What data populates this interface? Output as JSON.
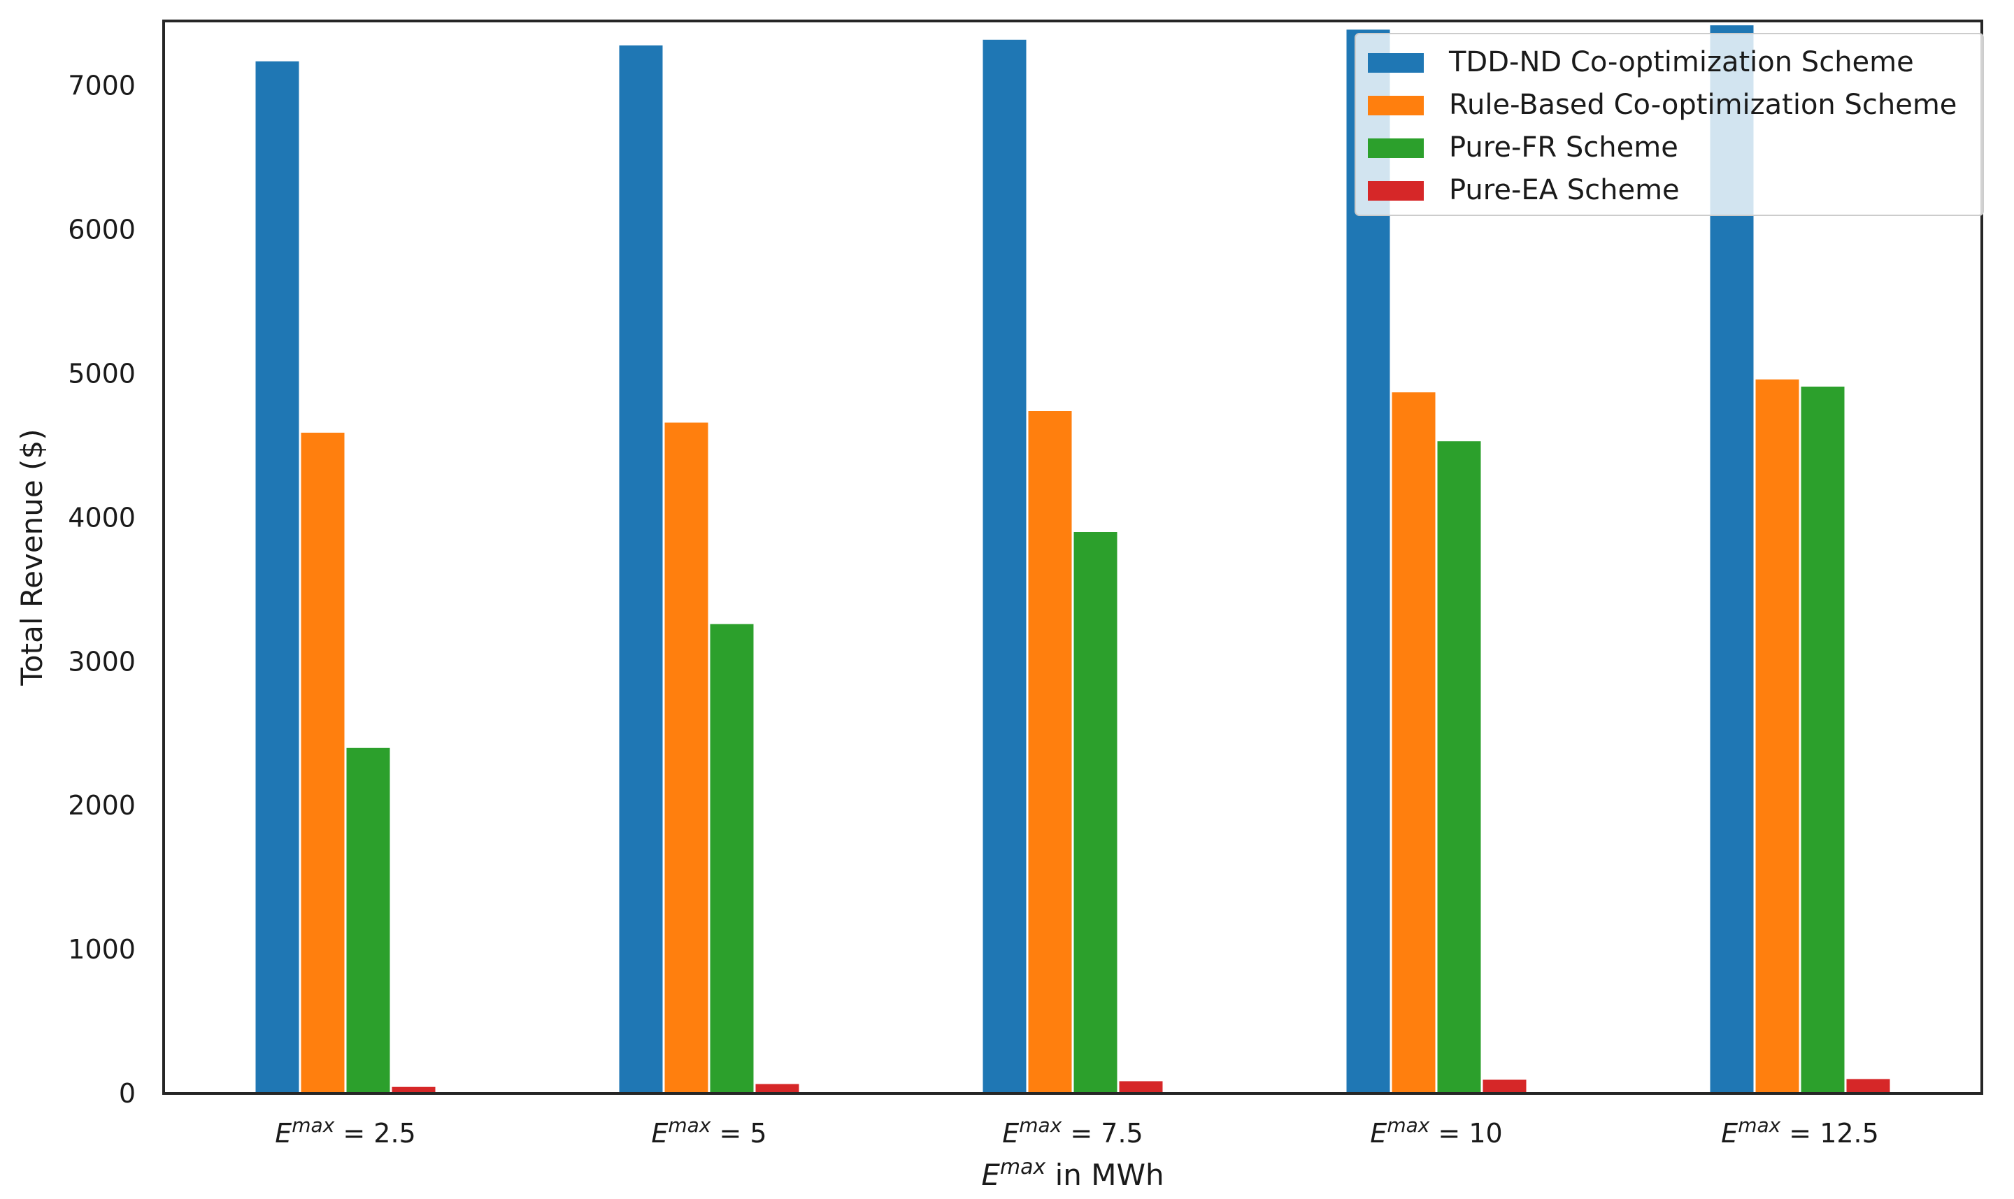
{
  "chart_data": {
    "type": "bar",
    "title": "",
    "xlabel_var": "E",
    "xlabel_sup": "max",
    "xlabel_rest": " in MWh",
    "ylabel": "Total Revenue ($)",
    "ylim": [
      0,
      7450
    ],
    "yticks": [
      0,
      1000,
      2000,
      3000,
      4000,
      5000,
      6000,
      7000
    ],
    "grid": false,
    "legend_position": "top-right",
    "categories": [
      {
        "var": "E",
        "sup": "max",
        "rest": " = 2.5"
      },
      {
        "var": "E",
        "sup": "max",
        "rest": " = 5"
      },
      {
        "var": "E",
        "sup": "max",
        "rest": " = 7.5"
      },
      {
        "var": "E",
        "sup": "max",
        "rest": " = 10"
      },
      {
        "var": "E",
        "sup": "max",
        "rest": " = 12.5"
      }
    ],
    "series": [
      {
        "name": "TDD-ND Co-optimization Scheme",
        "color": "#1f77b4",
        "values": [
          7170,
          7280,
          7320,
          7390,
          7420
        ]
      },
      {
        "name": "Rule-Based Co-optimization Scheme",
        "color": "#ff7f0e",
        "values": [
          4590,
          4660,
          4740,
          4870,
          4960
        ]
      },
      {
        "name": "Pure-FR Scheme",
        "color": "#2ca02c",
        "values": [
          2400,
          3260,
          3900,
          4530,
          4910
        ]
      },
      {
        "name": "Pure-EA Scheme",
        "color": "#d62728",
        "values": [
          45,
          65,
          85,
          95,
          100
        ]
      }
    ]
  }
}
